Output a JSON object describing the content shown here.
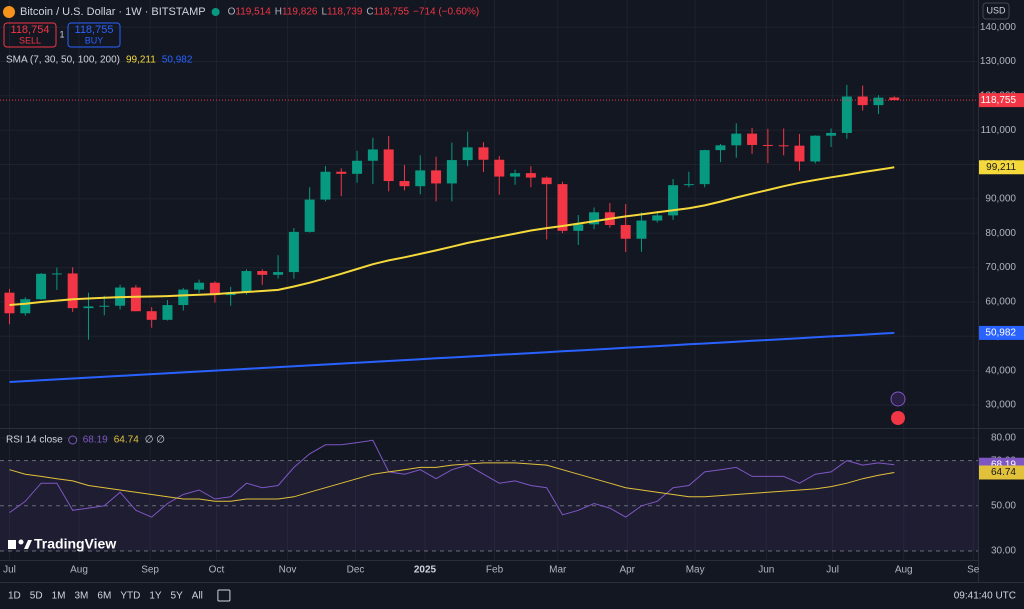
{
  "header": {
    "ohlc": [
      "O",
      "119,514",
      "H",
      "119,826",
      "L",
      "118,739",
      "C",
      "118,755",
      "−714 (−0.60%)"
    ],
    "sell": {
      "price": "118,754",
      "label": "SELL"
    },
    "spread": "1",
    "buy": {
      "price": "118,755",
      "label": "BUY"
    },
    "sma_legend": "SMA (7, 30, 50, 100, 200)",
    "rsi_legend": "RSI 14 close",
    "rsi_placeholders": "∅ ∅",
    "currency": "USD"
  },
  "toolbar": {
    "ranges": [
      "1D",
      "5D",
      "1M",
      "3M",
      "6M",
      "YTD",
      "1Y",
      "5Y",
      "All"
    ],
    "time": "09:41:40 UTC"
  },
  "brand": "TradingView",
  "chart_data": [
    {
      "type": "candlestick",
      "title": "Bitcoin / U.S. Dollar · 1W · BITSTAMP",
      "open": [
        62700,
        56700,
        60800,
        68200,
        68300,
        58200,
        58700,
        58900,
        64200,
        57300,
        54800,
        59100,
        63600,
        65600,
        62000,
        62800,
        69000,
        67900,
        68700,
        80400,
        89800,
        97900,
        97300,
        101100,
        104400,
        95200,
        93700,
        98300,
        94500,
        101300,
        105000,
        101400,
        96500,
        97500,
        96200,
        94300,
        80700,
        82600,
        86100,
        82400,
        78400,
        83700,
        85200,
        94000,
        94300,
        104200,
        105600,
        109000,
        105700,
        105600,
        105500,
        100900,
        108400,
        109200,
        119800,
        117300,
        119514
      ],
      "high": [
        63800,
        61400,
        68400,
        70000,
        70100,
        62700,
        61800,
        65000,
        64900,
        58500,
        60600,
        64100,
        66500,
        66000,
        64400,
        69500,
        69500,
        73600,
        81500,
        93400,
        99600,
        98900,
        104000,
        107800,
        108300,
        99900,
        102700,
        102300,
        106400,
        109600,
        106500,
        102500,
        98500,
        99500,
        96500,
        95000,
        85300,
        87500,
        88800,
        88500,
        86100,
        86400,
        95800,
        97900,
        104300,
        106000,
        112000,
        110700,
        110400,
        110500,
        108900,
        108500,
        110500,
        123200,
        123000,
        120200,
        119826
      ],
      "low": [
        53500,
        56000,
        60600,
        63500,
        57100,
        49000,
        56100,
        57800,
        57300,
        52500,
        54600,
        57500,
        62600,
        59800,
        58900,
        62100,
        65000,
        66800,
        66800,
        80200,
        89300,
        90800,
        94700,
        94300,
        92200,
        92500,
        91300,
        89300,
        89300,
        99500,
        97800,
        91200,
        94100,
        93400,
        78200,
        80000,
        76600,
        81200,
        81600,
        74500,
        74600,
        83100,
        83900,
        93400,
        93400,
        100700,
        102000,
        103100,
        100400,
        102700,
        98200,
        100300,
        105100,
        107500,
        115700,
        114700,
        118739
      ],
      "close": [
        56700,
        60800,
        68200,
        68300,
        58200,
        58700,
        58900,
        64200,
        57300,
        54800,
        59100,
        63600,
        65600,
        62000,
        62800,
        69000,
        67900,
        68700,
        80400,
        89800,
        97900,
        97300,
        101100,
        104400,
        95200,
        93700,
        98300,
        94500,
        101300,
        105000,
        101400,
        96500,
        97500,
        96200,
        94300,
        80700,
        82600,
        86100,
        82400,
        78400,
        83700,
        85200,
        94000,
        94300,
        104200,
        105600,
        109000,
        105700,
        105600,
        105500,
        100900,
        108400,
        109200,
        119800,
        117300,
        119469,
        118755
      ],
      "close_label": "118,755",
      "up_color": "#089981",
      "down_color": "#f23645",
      "series": [
        {
          "color": "#f5d93b",
          "last_label": "99,211",
          "values": [
            59100,
            59500,
            60000,
            60400,
            60800,
            61000,
            61200,
            61400,
            61500,
            61600,
            61700,
            61900,
            62100,
            62300,
            62600,
            62900,
            63200,
            63500,
            64500,
            65600,
            66900,
            68200,
            69600,
            71000,
            72100,
            73000,
            74000,
            75000,
            76100,
            77200,
            78100,
            79000,
            79900,
            80800,
            81500,
            82100,
            82800,
            83500,
            84200,
            84900,
            85500,
            86100,
            86700,
            87300,
            88100,
            89200,
            90400,
            91500,
            92600,
            93700,
            94700,
            95500,
            96300,
            97000,
            97800,
            98500,
            99211
          ]
        },
        {
          "color": "#2962ff",
          "last_label": "50,982",
          "values": [
            36700,
            36955,
            37210,
            37465,
            37720,
            37975,
            38230,
            38485,
            38740,
            38995,
            39250,
            39505,
            39760,
            40015,
            40270,
            40525,
            40780,
            41035,
            41290,
            41545,
            41800,
            42055,
            42310,
            42565,
            42820,
            43075,
            43330,
            43585,
            43840,
            44095,
            44350,
            44605,
            44860,
            45115,
            45370,
            45625,
            45880,
            46135,
            46390,
            46645,
            46900,
            47155,
            47410,
            47665,
            47920,
            48175,
            48430,
            48685,
            48940,
            49195,
            49450,
            49705,
            49960,
            50215,
            50470,
            50725,
            50982
          ]
        }
      ],
      "xlim": [
        -0.6,
        61.3
      ],
      "xticks": [
        {
          "value": 0,
          "label": "Jul"
        },
        {
          "value": 4.4,
          "label": "Aug"
        },
        {
          "value": 8.9,
          "label": "Sep"
        },
        {
          "value": 13.1,
          "label": "Oct"
        },
        {
          "value": 17.6,
          "label": "Nov"
        },
        {
          "value": 21.9,
          "label": "Dec"
        },
        {
          "value": 26.3,
          "label": "2025"
        },
        {
          "value": 30.7,
          "label": "Feb"
        },
        {
          "value": 34.7,
          "label": "Mar"
        },
        {
          "value": 39.1,
          "label": "Apr"
        },
        {
          "value": 43.4,
          "label": "May"
        },
        {
          "value": 47.9,
          "label": "Jun"
        },
        {
          "value": 52.1,
          "label": "Jul"
        },
        {
          "value": 56.6,
          "label": "Aug"
        },
        {
          "value": 61,
          "label": "Se"
        }
      ],
      "ylim": [
        23600,
        147900
      ],
      "yticks": [
        {
          "value": 30000,
          "label": "30,000"
        },
        {
          "value": 40000,
          "label": "40,000"
        },
        {
          "value": 50000,
          "label": "50,000"
        },
        {
          "value": 60000,
          "label": "60,000"
        },
        {
          "value": 70000,
          "label": "70,000"
        },
        {
          "value": 80000,
          "label": "80,000"
        },
        {
          "value": 90000,
          "label": "90,000"
        },
        {
          "value": 100000,
          "label": "100,000"
        },
        {
          "value": 110000,
          "label": "110,000"
        },
        {
          "value": 120000,
          "label": "120,000"
        },
        {
          "value": 130000,
          "label": "130,000"
        },
        {
          "value": 140000,
          "label": "140,000"
        }
      ],
      "grid": true
    },
    {
      "type": "line",
      "ylim": [
        26,
        84
      ],
      "band": [
        30,
        70
      ],
      "band_color": "#7e57c2",
      "yticks": [
        {
          "value": 30,
          "label": "30.00"
        },
        {
          "value": 50,
          "label": "50.00"
        },
        {
          "value": 70,
          "label": "70.00"
        },
        {
          "value": 80,
          "label": "80.00"
        }
      ],
      "series": [
        {
          "color": "#7e57c2",
          "values": [
            47,
            52,
            60,
            60,
            48,
            49,
            50,
            56,
            48,
            45,
            51,
            55,
            57,
            53,
            54,
            60,
            58,
            59,
            67,
            73,
            77,
            77,
            78,
            79,
            65,
            64,
            66,
            62,
            66,
            68,
            64,
            60,
            61,
            59,
            58,
            46,
            48,
            51,
            49,
            45,
            50,
            52,
            58,
            59,
            65,
            66,
            67,
            63,
            63,
            63,
            60,
            64,
            65,
            70,
            68,
            69,
            68.19
          ]
        },
        {
          "color": "#e2c13a",
          "values": [
            66,
            64,
            63,
            62,
            61,
            59,
            58,
            57,
            56,
            55,
            54,
            53,
            53,
            52,
            52,
            53,
            53,
            53,
            54,
            56,
            58,
            60,
            62,
            64,
            65,
            66,
            67,
            67,
            68,
            68.5,
            69,
            69,
            69,
            68.5,
            68,
            66,
            64,
            62,
            60,
            58,
            57,
            56,
            55,
            54,
            54,
            54.5,
            55,
            55.5,
            56,
            56.5,
            57,
            57.5,
            58.5,
            60,
            62,
            63.5,
            64.74
          ]
        }
      ]
    }
  ]
}
